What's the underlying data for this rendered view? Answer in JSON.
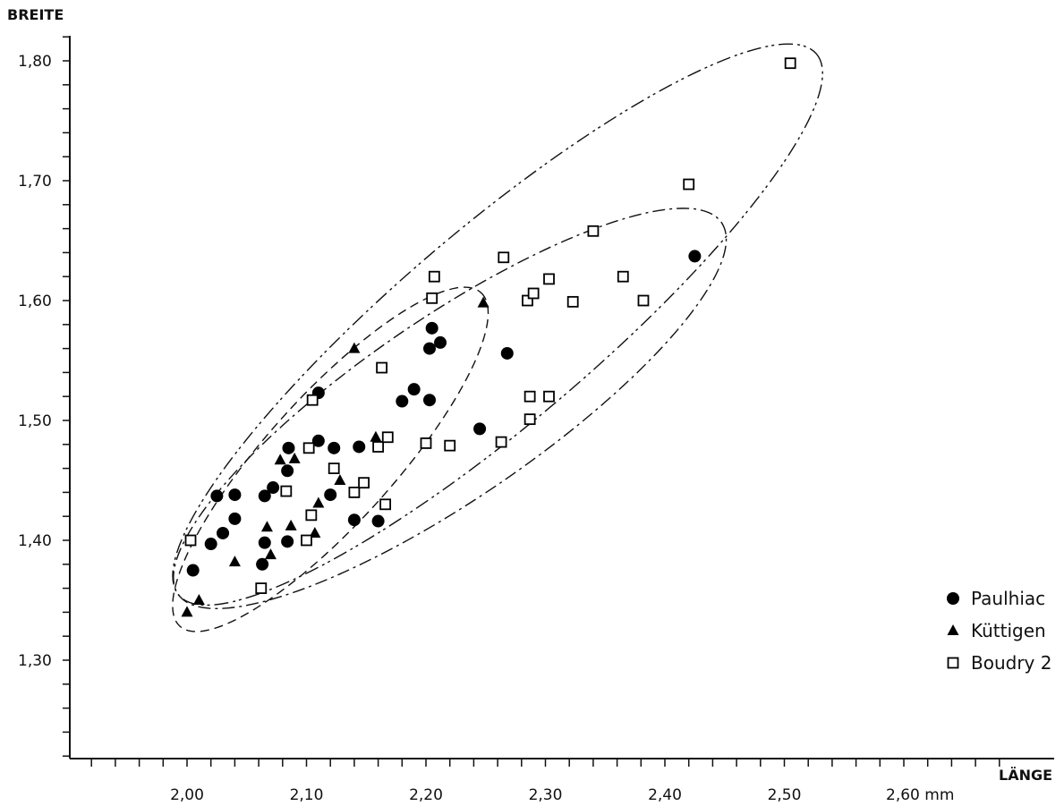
{
  "chart_data": {
    "type": "scatter",
    "title": "",
    "xlabel": "LÄNGE",
    "ylabel": "BREITE",
    "xlim": [
      1.915,
      2.685
    ],
    "ylim": [
      1.22,
      1.82
    ],
    "x_tick_labels": [
      {
        "value": 2.0,
        "label": "2,00"
      },
      {
        "value": 2.1,
        "label": "2,10"
      },
      {
        "value": 2.2,
        "label": "2,20"
      },
      {
        "value": 2.3,
        "label": "2,30"
      },
      {
        "value": 2.4,
        "label": "2,40"
      },
      {
        "value": 2.5,
        "label": "2,50"
      },
      {
        "value": 2.6,
        "label": "2,60 mm"
      }
    ],
    "y_tick_labels": [
      {
        "value": 1.3,
        "label": "1,30"
      },
      {
        "value": 1.4,
        "label": "1,40"
      },
      {
        "value": 1.5,
        "label": "1,50"
      },
      {
        "value": 1.6,
        "label": "1,60"
      },
      {
        "value": 1.7,
        "label": "1,70"
      },
      {
        "value": 1.8,
        "label": "1,80"
      }
    ],
    "grid": false,
    "legend_position": "right",
    "series": [
      {
        "name": "Paulhiac",
        "marker": "filled-circle",
        "color": "#000000",
        "points": [
          [
            2.005,
            1.375
          ],
          [
            2.02,
            1.397
          ],
          [
            2.025,
            1.437
          ],
          [
            2.03,
            1.406
          ],
          [
            2.04,
            1.418
          ],
          [
            2.04,
            1.438
          ],
          [
            2.063,
            1.38
          ],
          [
            2.065,
            1.398
          ],
          [
            2.065,
            1.437
          ],
          [
            2.072,
            1.444
          ],
          [
            2.084,
            1.399
          ],
          [
            2.084,
            1.458
          ],
          [
            2.085,
            1.477
          ],
          [
            2.11,
            1.483
          ],
          [
            2.11,
            1.523
          ],
          [
            2.12,
            1.438
          ],
          [
            2.123,
            1.477
          ],
          [
            2.14,
            1.417
          ],
          [
            2.144,
            1.478
          ],
          [
            2.16,
            1.416
          ],
          [
            2.18,
            1.516
          ],
          [
            2.19,
            1.526
          ],
          [
            2.203,
            1.517
          ],
          [
            2.203,
            1.56
          ],
          [
            2.205,
            1.577
          ],
          [
            2.212,
            1.565
          ],
          [
            2.245,
            1.493
          ],
          [
            2.268,
            1.556
          ],
          [
            2.425,
            1.637
          ]
        ]
      },
      {
        "name": "Küttigen",
        "marker": "filled-triangle",
        "color": "#000000",
        "points": [
          [
            2.0,
            1.34
          ],
          [
            2.01,
            1.35
          ],
          [
            2.04,
            1.382
          ],
          [
            2.067,
            1.411
          ],
          [
            2.07,
            1.388
          ],
          [
            2.078,
            1.467
          ],
          [
            2.087,
            1.412
          ],
          [
            2.09,
            1.468
          ],
          [
            2.107,
            1.406
          ],
          [
            2.11,
            1.431
          ],
          [
            2.128,
            1.45
          ],
          [
            2.14,
            1.56
          ],
          [
            2.158,
            1.486
          ],
          [
            2.248,
            1.598
          ]
        ]
      },
      {
        "name": "Boudry 2",
        "marker": "open-square",
        "color": "#000000",
        "points": [
          [
            2.003,
            1.4
          ],
          [
            2.062,
            1.36
          ],
          [
            2.083,
            1.441
          ],
          [
            2.1,
            1.4
          ],
          [
            2.102,
            1.477
          ],
          [
            2.104,
            1.421
          ],
          [
            2.105,
            1.517
          ],
          [
            2.123,
            1.46
          ],
          [
            2.14,
            1.44
          ],
          [
            2.148,
            1.448
          ],
          [
            2.16,
            1.478
          ],
          [
            2.163,
            1.544
          ],
          [
            2.166,
            1.43
          ],
          [
            2.168,
            1.486
          ],
          [
            2.2,
            1.481
          ],
          [
            2.205,
            1.602
          ],
          [
            2.207,
            1.62
          ],
          [
            2.22,
            1.479
          ],
          [
            2.263,
            1.482
          ],
          [
            2.265,
            1.636
          ],
          [
            2.285,
            1.6
          ],
          [
            2.287,
            1.52
          ],
          [
            2.287,
            1.501
          ],
          [
            2.29,
            1.606
          ],
          [
            2.303,
            1.52
          ],
          [
            2.303,
            1.618
          ],
          [
            2.323,
            1.599
          ],
          [
            2.34,
            1.658
          ],
          [
            2.365,
            1.62
          ],
          [
            2.382,
            1.6
          ],
          [
            2.42,
            1.697
          ],
          [
            2.505,
            1.798
          ]
        ]
      }
    ],
    "annotations": [
      {
        "group": "Paulhiac",
        "style": "dashed",
        "outline": [
          [
            2.0,
            1.335
          ],
          [
            2.16,
            1.43
          ],
          [
            2.24,
            1.6
          ],
          [
            2.08,
            1.5
          ]
        ]
      },
      {
        "group": "Küttigen",
        "style": "dash-dot",
        "outline": [
          [
            2.0,
            1.36
          ],
          [
            2.24,
            1.46
          ],
          [
            2.44,
            1.66
          ],
          [
            2.12,
            1.56
          ]
        ]
      },
      {
        "group": "Boudry 2",
        "style": "dash-dot-dot",
        "outline": [
          [
            2.0,
            1.36
          ],
          [
            2.28,
            1.48
          ],
          [
            2.52,
            1.8
          ],
          [
            2.1,
            1.54
          ]
        ]
      }
    ]
  }
}
